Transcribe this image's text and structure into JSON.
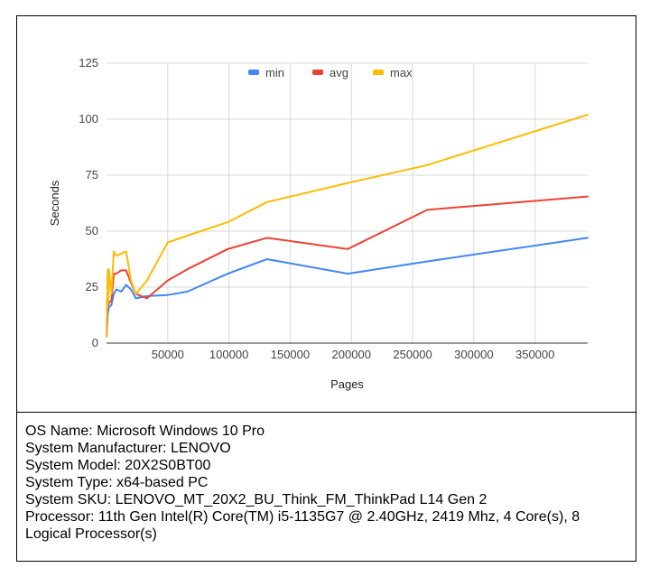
{
  "chart_data": {
    "type": "line",
    "xlabel": "Pages",
    "ylabel": "Seconds",
    "xlim": [
      0,
      393000
    ],
    "ylim": [
      0,
      125
    ],
    "x_ticks": [
      50000,
      100000,
      150000,
      200000,
      250000,
      300000,
      350000
    ],
    "y_ticks": [
      0,
      25,
      50,
      75,
      100,
      125
    ],
    "grid": true,
    "legend_position": "top",
    "series": [
      {
        "name": "min",
        "color": "#4285f4",
        "points": [
          [
            100,
            3
          ],
          [
            1000,
            13
          ],
          [
            2000,
            16
          ],
          [
            4000,
            17
          ],
          [
            6000,
            22
          ],
          [
            8000,
            24
          ],
          [
            12000,
            23
          ],
          [
            16000,
            26
          ],
          [
            20000,
            24
          ],
          [
            24000,
            20
          ],
          [
            33000,
            21
          ],
          [
            50000,
            21.5
          ],
          [
            66000,
            23
          ],
          [
            99000,
            31
          ],
          [
            131000,
            37.5
          ],
          [
            197000,
            31
          ],
          [
            262000,
            36.5
          ],
          [
            393000,
            47
          ]
        ]
      },
      {
        "name": "avg",
        "color": "#ea4335",
        "points": [
          [
            100,
            4
          ],
          [
            1000,
            31
          ],
          [
            1500,
            17
          ],
          [
            2000,
            18
          ],
          [
            4000,
            19
          ],
          [
            6000,
            31
          ],
          [
            8000,
            31
          ],
          [
            12000,
            32.5
          ],
          [
            16000,
            32.5
          ],
          [
            20000,
            27
          ],
          [
            24000,
            22
          ],
          [
            33000,
            20
          ],
          [
            50000,
            28
          ],
          [
            66000,
            33
          ],
          [
            99000,
            42
          ],
          [
            131000,
            47
          ],
          [
            197000,
            42
          ],
          [
            262000,
            59.5
          ],
          [
            393000,
            65.5
          ]
        ]
      },
      {
        "name": "max",
        "color": "#fbbc04",
        "points": [
          [
            100,
            3
          ],
          [
            1000,
            33
          ],
          [
            1500,
            18
          ],
          [
            2000,
            33
          ],
          [
            4000,
            22
          ],
          [
            6000,
            41
          ],
          [
            8000,
            39
          ],
          [
            12000,
            40
          ],
          [
            16000,
            41
          ],
          [
            20000,
            28
          ],
          [
            24000,
            22
          ],
          [
            33000,
            28
          ],
          [
            50000,
            45
          ],
          [
            66000,
            48
          ],
          [
            99000,
            54
          ],
          [
            131000,
            63
          ],
          [
            197000,
            71.5
          ],
          [
            262000,
            79.5
          ],
          [
            393000,
            102
          ]
        ]
      }
    ]
  },
  "system_info": {
    "os_name": "OS Name: Microsoft Windows 10 Pro",
    "manufacturer": "System Manufacturer: LENOVO",
    "model": "System Model: 20X2S0BT00",
    "type": "System Type: x64-based PC",
    "sku": "System SKU: LENOVO_MT_20X2_BU_Think_FM_ThinkPad L14 Gen 2",
    "processor": "Processor: 11th Gen Intel(R) Core(TM) i5-1135G7 @ 2.40GHz, 2419 Mhz, 4 Core(s), 8 Logical Processor(s)"
  }
}
